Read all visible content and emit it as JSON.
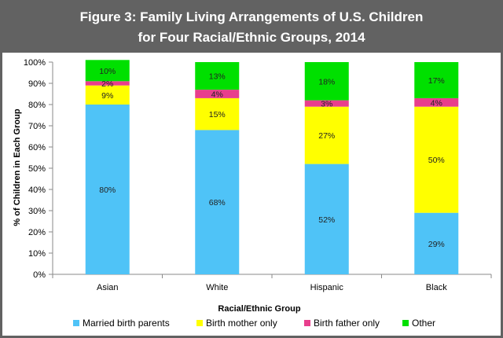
{
  "chart_data": {
    "type": "bar",
    "stacked": true,
    "title": "Figure 3: Family Living Arrangements of U.S. Children",
    "subtitle": "for Four Racial/Ethnic Groups, 2014",
    "xlabel": "Racial/Ethnic Group",
    "ylabel": "% of Children in Each Group",
    "ylim": [
      0,
      100
    ],
    "yticks": [
      "0%",
      "10%",
      "20%",
      "30%",
      "40%",
      "50%",
      "60%",
      "70%",
      "80%",
      "90%",
      "100%"
    ],
    "categories": [
      "Asian",
      "White",
      "Hispanic",
      "Black"
    ],
    "series": [
      {
        "name": "Married birth parents",
        "color": "#4fc3f7",
        "values": [
          80,
          68,
          52,
          29
        ],
        "labels": [
          "80%",
          "68%",
          "52%",
          "29%"
        ]
      },
      {
        "name": "Birth mother only",
        "color": "#ffff00",
        "values": [
          9,
          15,
          27,
          50
        ],
        "labels": [
          "9%",
          "15%",
          "27%",
          "50%"
        ]
      },
      {
        "name": "Birth father only",
        "color": "#e83e8c",
        "values": [
          2,
          4,
          3,
          4
        ],
        "labels": [
          "2%",
          "4%",
          "3%",
          "4%"
        ]
      },
      {
        "name": "Other",
        "color": "#00e000",
        "values": [
          10,
          13,
          18,
          17
        ],
        "labels": [
          "10%",
          "13%",
          "18%",
          "17%"
        ]
      }
    ],
    "grid": false,
    "legend_position": "bottom"
  },
  "colors": {
    "background": "#626262",
    "plot_area": "#ffffff",
    "title": "#ffffff"
  }
}
